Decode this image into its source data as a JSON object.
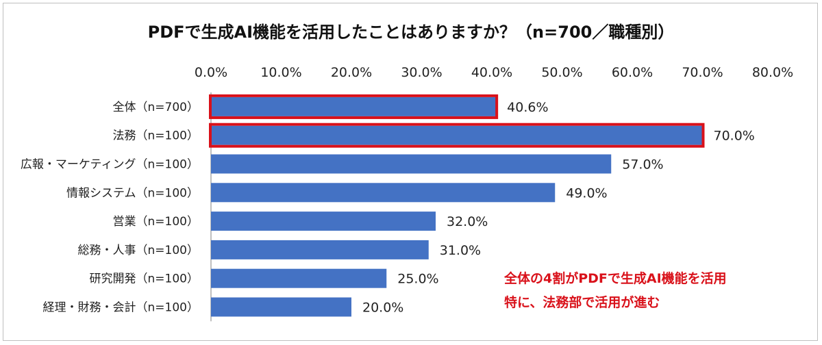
{
  "chart_data": {
    "type": "bar",
    "orientation": "horizontal",
    "title": "PDFで生成AI機能を活用したことはありますか？（n=700／職種別）",
    "categories": [
      "全体（n=700）",
      "法務（n=100）",
      "広報・マーケティング（n=100）",
      "情報システム（n=100）",
      "営業（n=100）",
      "総務・人事（n=100）",
      "研究開発（n=100）",
      "経理・財務・会計（n=100）"
    ],
    "values": [
      40.6,
      70.0,
      57.0,
      49.0,
      32.0,
      31.0,
      25.0,
      20.0
    ],
    "value_labels": [
      "40.6%",
      "70.0%",
      "57.0%",
      "49.0%",
      "32.0%",
      "31.0%",
      "25.0%",
      "20.0%"
    ],
    "xlim": [
      0,
      80
    ],
    "x_ticks": [
      "0.0%",
      "10.0%",
      "20.0%",
      "30.0%",
      "40.0%",
      "50.0%",
      "60.0%",
      "70.0%",
      "80.0%"
    ],
    "x_axis_position": "top",
    "highlighted": [
      true,
      true,
      false,
      false,
      false,
      false,
      false,
      false
    ],
    "grid": false,
    "bar_color": "#4472c4",
    "highlight_color": "#d9111a",
    "annotation": [
      "全体の4割がPDFで生成AI機能を活用",
      "特に、法務部で活用が進む"
    ]
  }
}
